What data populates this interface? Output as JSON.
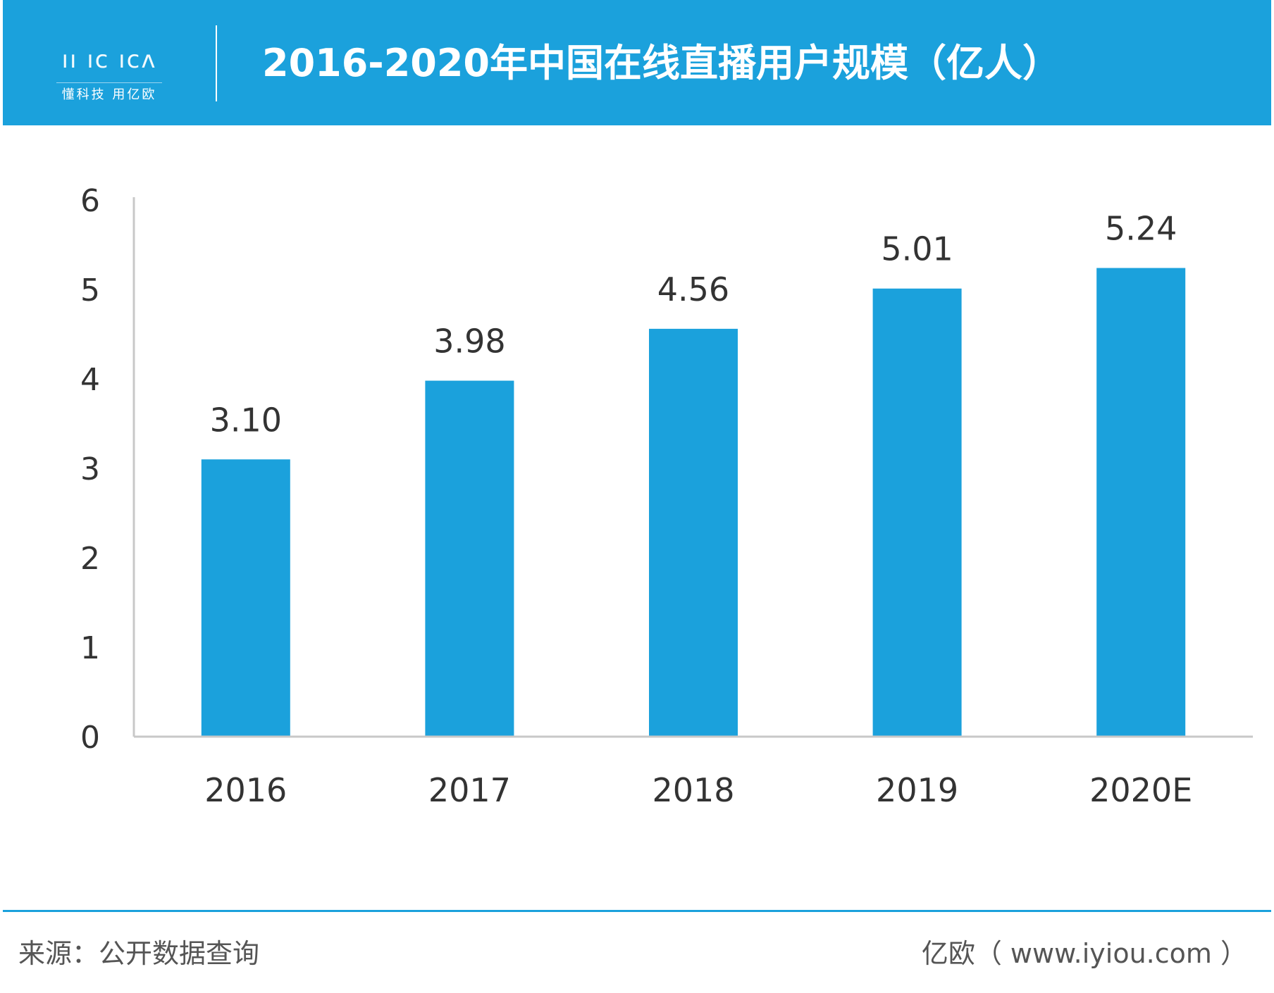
{
  "header": {
    "logo_mark": "ıı ıᴄ ıᴄʌ",
    "logo_tagline": "懂科技 用亿欧",
    "title": "2016-2020年中国在线直播用户规模（亿人）"
  },
  "footer": {
    "source": "来源：公开数据查询",
    "credit": "亿欧（ www.iyiou.com ）"
  },
  "colors": {
    "accent": "#1ba1dc",
    "bar": "#1ba1dc",
    "axis": "#c8c8c8",
    "text": "#333333"
  },
  "chart_data": {
    "type": "bar",
    "title": "2016-2020年中国在线直播用户规模（亿人）",
    "categories": [
      "2016",
      "2017",
      "2018",
      "2019",
      "2020E"
    ],
    "values": [
      3.1,
      3.98,
      4.56,
      5.01,
      5.24
    ],
    "value_labels": [
      "3.10",
      "3.98",
      "4.56",
      "5.01",
      "5.24"
    ],
    "y_ticks": [
      "0",
      "1",
      "2",
      "3",
      "4",
      "5",
      "6"
    ],
    "ylim": [
      0,
      6
    ],
    "grid": false,
    "legend": "none"
  }
}
